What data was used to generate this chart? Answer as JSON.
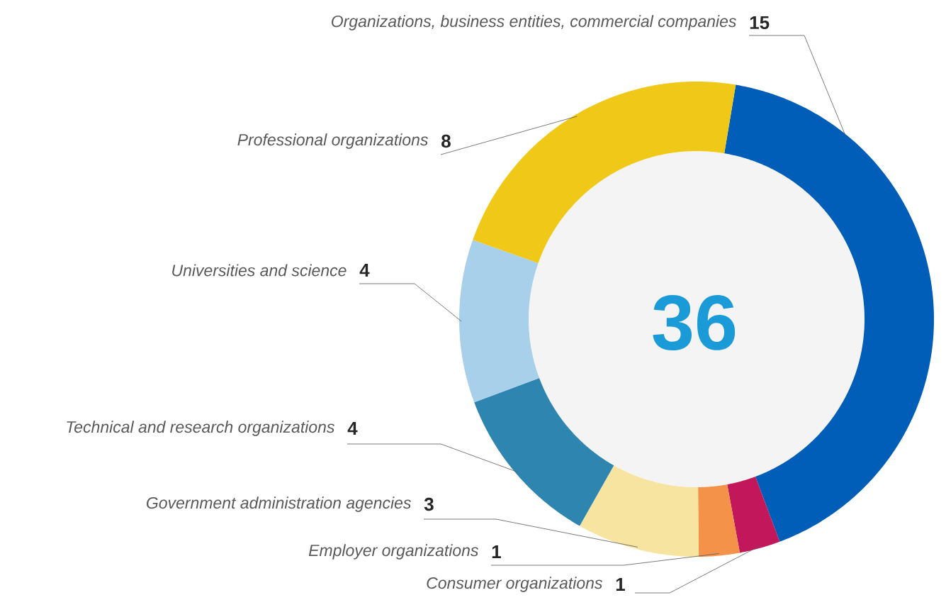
{
  "chart_data": {
    "type": "donut",
    "categories": [
      "Organizations, business entities, commercial companies",
      "Consumer organizations",
      "Employer organizations",
      "Government administration agencies",
      "Technical and research organizations",
      "Universities and science",
      "Professional organizations"
    ],
    "values": [
      15,
      1,
      1,
      3,
      4,
      4,
      8
    ],
    "colors": [
      "#005eb8",
      "#c2185b",
      "#f5924a",
      "#f7e4a0",
      "#2e86b0",
      "#a8d0ea",
      "#f0c918"
    ],
    "data_labels": true,
    "annotations": [
      "36"
    ]
  }
}
